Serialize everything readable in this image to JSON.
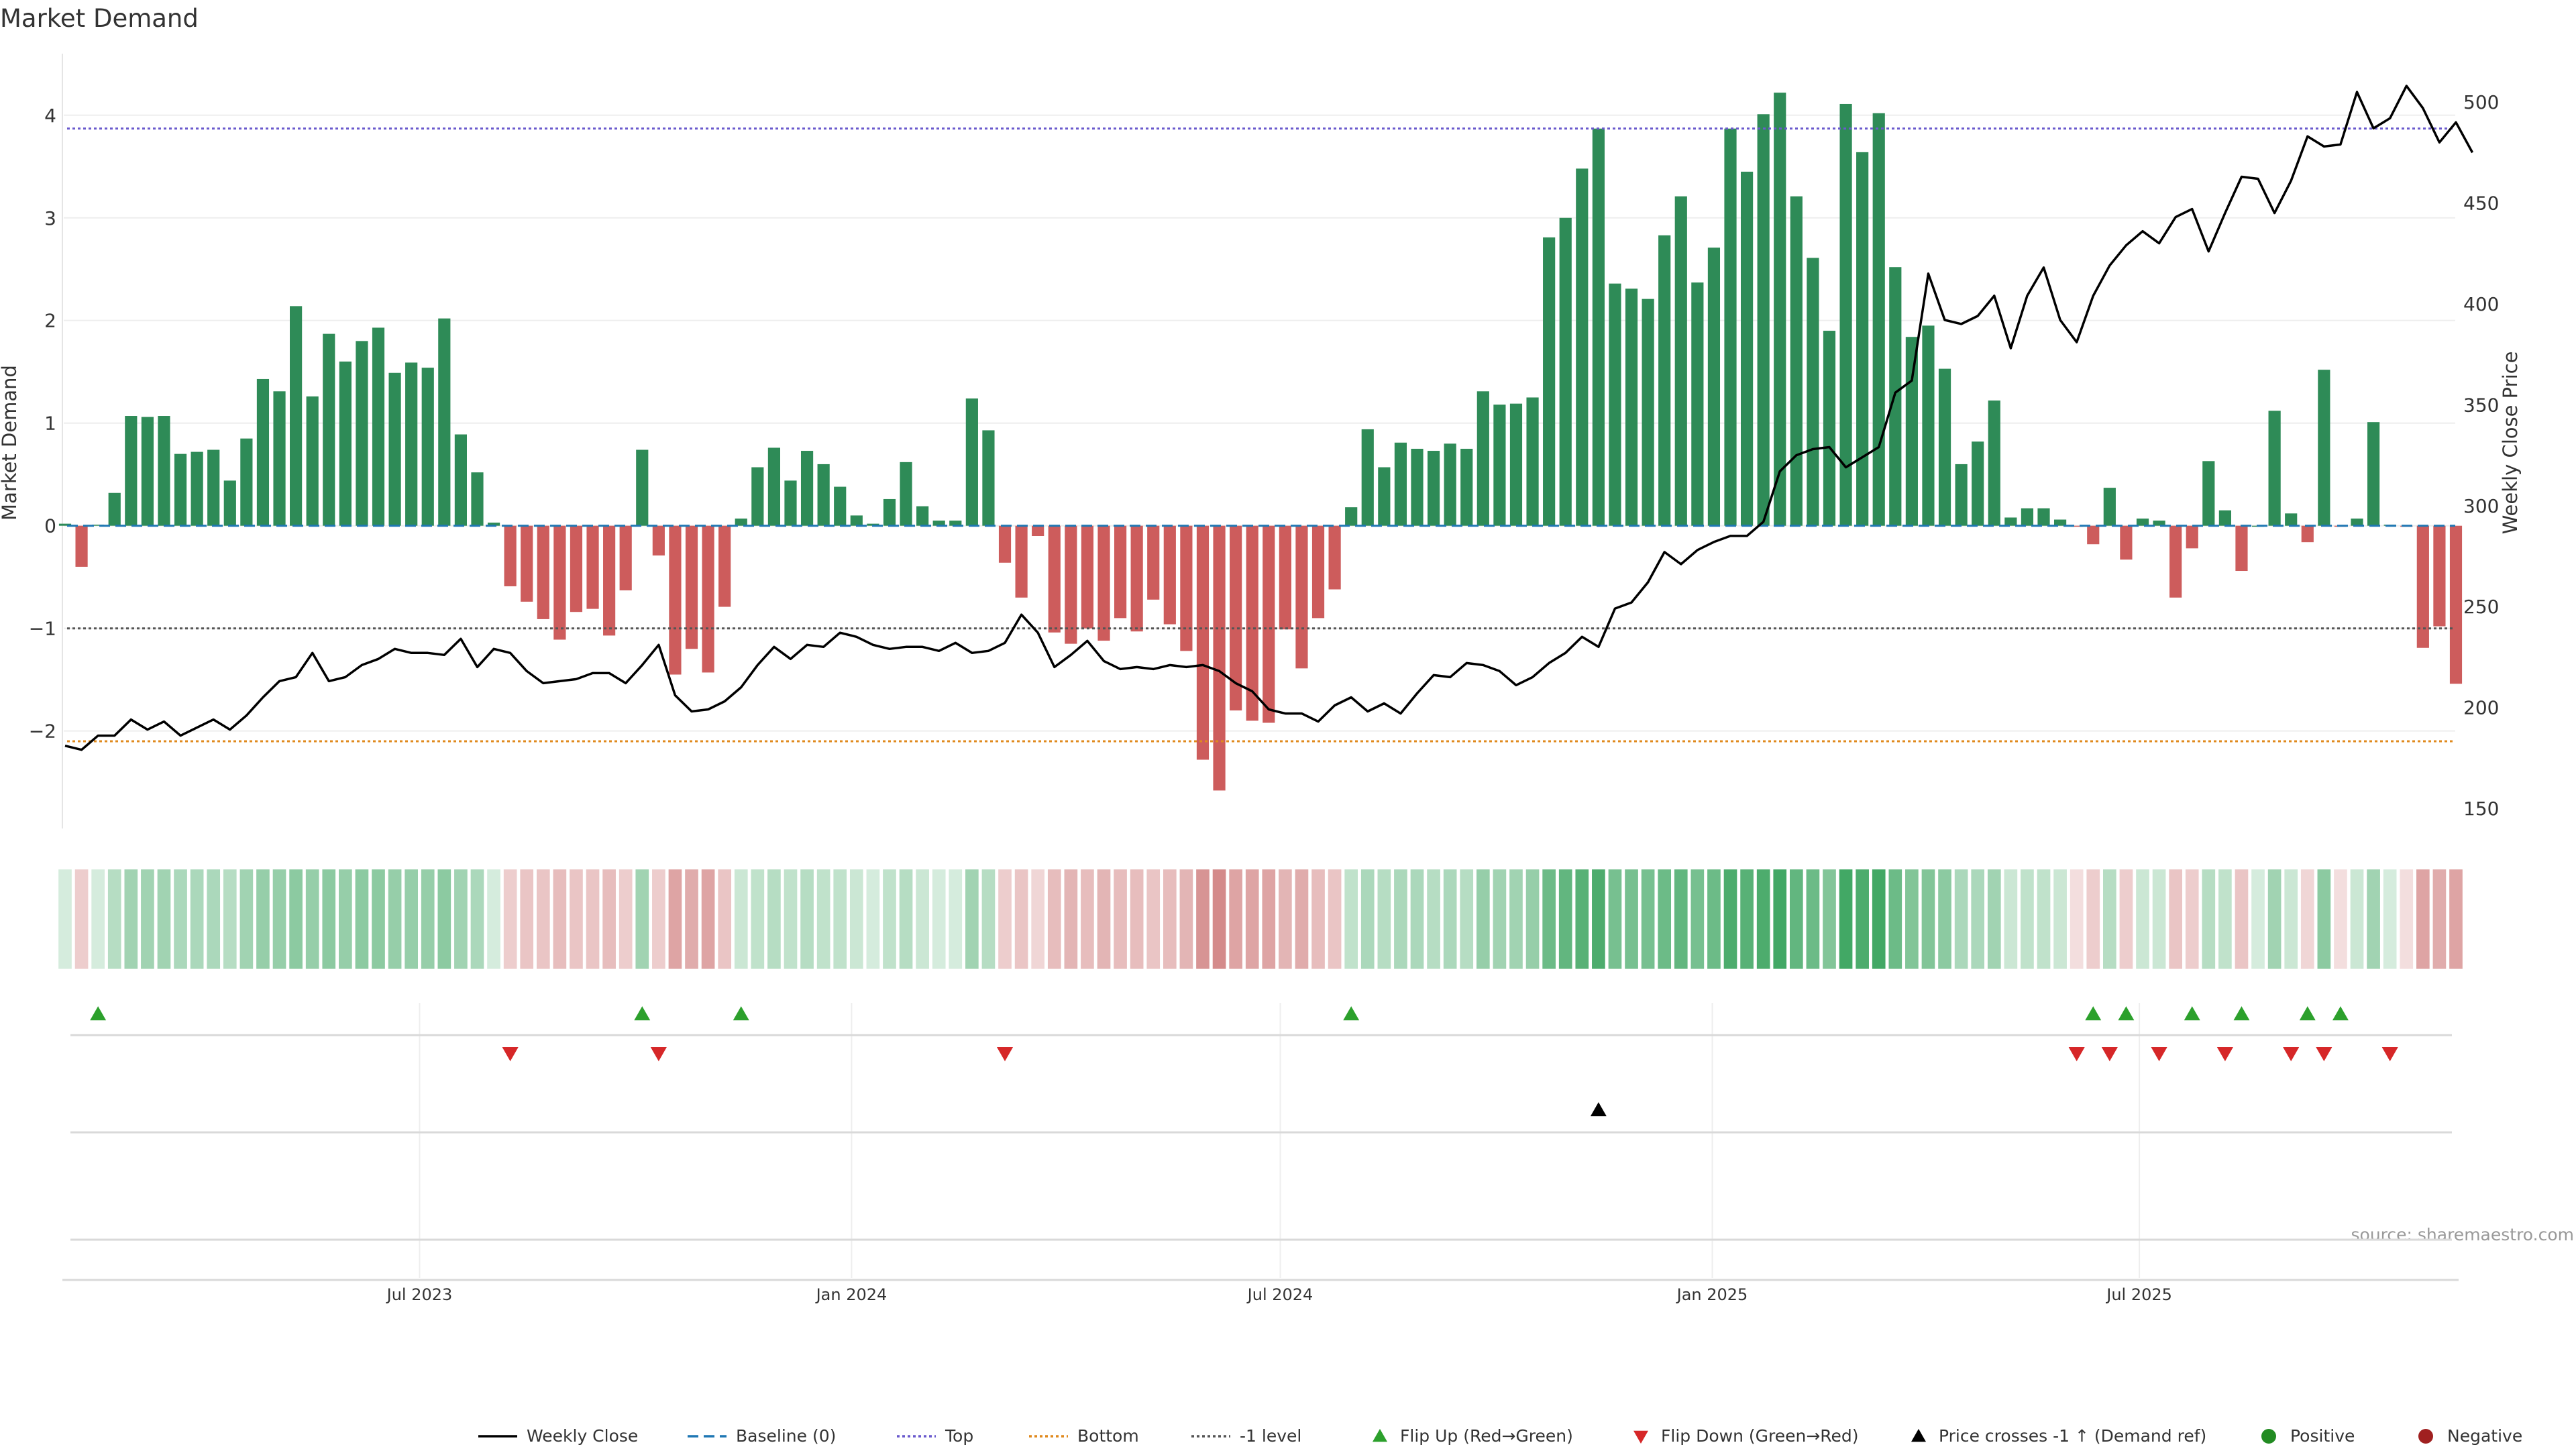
{
  "chart_data": {
    "type": "bar",
    "title": "Market Demand",
    "ylabel": "Market Demand",
    "y2label": "Weekly Close Price",
    "source": "source: sharemaestro.com",
    "ylim": [
      -2.95,
      4.6
    ],
    "y2lim": [
      140,
      524
    ],
    "yticks": [
      -2,
      -1,
      0,
      1,
      2,
      3,
      4
    ],
    "ytick_labels": [
      "−2",
      "−1",
      "0",
      "1",
      "2",
      "3",
      "4"
    ],
    "y2ticks": [
      150,
      200,
      250,
      300,
      350,
      400,
      450,
      500
    ],
    "ytick2_labels": [
      "150",
      "200",
      "250",
      "300",
      "350",
      "400",
      "450",
      "500"
    ],
    "xticks": [
      {
        "week": 21.5,
        "label": "Jul 2023"
      },
      {
        "week": 47.7,
        "label": "Jan 2024"
      },
      {
        "week": 73.7,
        "label": "Jul 2024"
      },
      {
        "week": 99.9,
        "label": "Jan 2025"
      },
      {
        "week": 125.8,
        "label": "Jul 2025"
      }
    ],
    "reference_lines": {
      "top": 3.87,
      "bottom": -2.1,
      "minus_one": -1.0,
      "baseline": 0
    },
    "colors": {
      "positive_bar": "#2e8b57",
      "negative_bar": "#cd5c5c",
      "price_line": "#000000",
      "top_line": "#6a5acd",
      "bottom_line": "#e08a1e",
      "minus_one_line": "#555555",
      "baseline": "#1f77b4",
      "flip_up": "#2ca02c",
      "flip_down": "#d62728",
      "price_cross": "#000000",
      "positive_dot": "#228b22",
      "negative_dot": "#a02020"
    },
    "demand": [
      0.02,
      -0.4,
      0.01,
      0.32,
      1.07,
      1.06,
      1.07,
      0.7,
      0.72,
      0.74,
      0.44,
      0.85,
      1.43,
      1.31,
      2.14,
      1.26,
      1.87,
      1.6,
      1.8,
      1.93,
      1.49,
      1.59,
      1.54,
      2.02,
      0.89,
      0.52,
      0.03,
      -0.59,
      -0.74,
      -0.91,
      -1.11,
      -0.84,
      -0.81,
      -1.07,
      -0.63,
      0.74,
      -0.29,
      -1.45,
      -1.2,
      -1.43,
      -0.79,
      0.07,
      0.57,
      0.76,
      0.44,
      0.73,
      0.6,
      0.38,
      0.1,
      0.02,
      0.26,
      0.62,
      0.19,
      0.05,
      0.05,
      1.24,
      0.93,
      -0.36,
      -0.7,
      -0.1,
      -1.04,
      -1.15,
      -1.0,
      -1.12,
      -0.9,
      -1.03,
      -0.72,
      -0.96,
      -1.22,
      -2.28,
      -2.58,
      -1.8,
      -1.9,
      -1.92,
      -1.01,
      -1.39,
      -0.9,
      -0.62,
      0.18,
      0.94,
      0.57,
      0.81,
      0.75,
      0.73,
      0.8,
      0.75,
      1.31,
      1.18,
      1.19,
      1.25,
      2.81,
      3.0,
      3.48,
      3.87,
      2.36,
      2.31,
      2.21,
      2.83,
      3.21,
      2.37,
      2.71,
      3.87,
      3.45,
      4.01,
      4.22,
      3.21,
      2.61,
      1.9,
      4.11,
      3.64,
      4.02,
      2.52,
      1.84,
      1.95,
      1.53,
      0.6,
      0.82,
      1.22,
      0.08,
      0.17,
      0.17,
      0.06,
      -0.01,
      -0.18,
      0.37,
      -0.33,
      0.07,
      0.05,
      -0.7,
      -0.22,
      0.63,
      0.15,
      -0.44,
      0.0,
      1.12,
      0.12,
      -0.16,
      1.52,
      -0.01,
      0.07,
      1.01,
      0.01,
      -0.01,
      -1.19,
      -0.98,
      -1.54
    ],
    "price": [
      181,
      179,
      186,
      186,
      194,
      189,
      193,
      186,
      190,
      194,
      189,
      196,
      205,
      213,
      215,
      227,
      213,
      215,
      221,
      224,
      229,
      227,
      227,
      226,
      234,
      220,
      229,
      227,
      218,
      212,
      213,
      214,
      217,
      217,
      212,
      221,
      231,
      206,
      198,
      199,
      203,
      210,
      221,
      230,
      224,
      231,
      230,
      237,
      235,
      231,
      229,
      230,
      230,
      228,
      232,
      227,
      228,
      232,
      246,
      237,
      220,
      226,
      233,
      223,
      219,
      220,
      219,
      221,
      220,
      221,
      218,
      212,
      208,
      199,
      197,
      197,
      193,
      201,
      205,
      198,
      202,
      197,
      207,
      216,
      215,
      222,
      221,
      218,
      211,
      215,
      222,
      227,
      235,
      230,
      249,
      252,
      262,
      277,
      271,
      278,
      282,
      285,
      285,
      292,
      317,
      325,
      328,
      329,
      319,
      324,
      329,
      356,
      362,
      415,
      392,
      390,
      394,
      404,
      378,
      404,
      418,
      392,
      381,
      404,
      419,
      429,
      436,
      430,
      443,
      447,
      426,
      445,
      463,
      462,
      445,
      461,
      483,
      478,
      479,
      505,
      487,
      492,
      508,
      497,
      480,
      490,
      475
    ],
    "shade_intensity": [
      0.2,
      0.3,
      0.2,
      0.35,
      0.45,
      0.45,
      0.45,
      0.4,
      0.4,
      0.4,
      0.35,
      0.45,
      0.5,
      0.5,
      0.55,
      0.5,
      0.55,
      0.5,
      0.55,
      0.55,
      0.5,
      0.5,
      0.5,
      0.55,
      0.45,
      0.4,
      0.2,
      0.3,
      0.35,
      0.35,
      0.4,
      0.35,
      0.35,
      0.4,
      0.3,
      0.45,
      0.3,
      0.55,
      0.5,
      0.55,
      0.35,
      0.25,
      0.3,
      0.35,
      0.3,
      0.35,
      0.3,
      0.3,
      0.25,
      0.2,
      0.3,
      0.35,
      0.25,
      0.2,
      0.2,
      0.45,
      0.35,
      0.3,
      0.35,
      0.25,
      0.4,
      0.45,
      0.4,
      0.45,
      0.4,
      0.4,
      0.35,
      0.4,
      0.45,
      0.65,
      0.7,
      0.55,
      0.55,
      0.55,
      0.45,
      0.5,
      0.4,
      0.35,
      0.3,
      0.4,
      0.35,
      0.4,
      0.4,
      0.35,
      0.4,
      0.35,
      0.5,
      0.45,
      0.45,
      0.5,
      0.7,
      0.75,
      0.8,
      0.85,
      0.65,
      0.65,
      0.65,
      0.7,
      0.75,
      0.65,
      0.7,
      0.85,
      0.8,
      0.85,
      0.9,
      0.75,
      0.7,
      0.6,
      0.9,
      0.85,
      0.9,
      0.7,
      0.6,
      0.6,
      0.55,
      0.4,
      0.4,
      0.45,
      0.25,
      0.3,
      0.3,
      0.25,
      0.2,
      0.3,
      0.35,
      0.3,
      0.25,
      0.25,
      0.35,
      0.3,
      0.35,
      0.3,
      0.35,
      0.2,
      0.45,
      0.25,
      0.25,
      0.55,
      0.2,
      0.25,
      0.45,
      0.2,
      0.2,
      0.55,
      0.5,
      0.55
    ],
    "flip_up_weeks": [
      2,
      35,
      41,
      78,
      123,
      125,
      129,
      132,
      136,
      138
    ],
    "flip_down_weeks": [
      27,
      36,
      57,
      122,
      124,
      127,
      131,
      135,
      137,
      141
    ],
    "price_cross_weeks": [
      93
    ],
    "legend": [
      {
        "label": "Weekly Close",
        "symbol": "line",
        "color": "#000000"
      },
      {
        "label": "Baseline (0)",
        "symbol": "dash",
        "color": "#1f77b4"
      },
      {
        "label": "Top",
        "symbol": "dot",
        "color": "#6a5acd"
      },
      {
        "label": "Bottom",
        "symbol": "dot",
        "color": "#e08a1e"
      },
      {
        "label": "-1 level",
        "symbol": "dot",
        "color": "#555555"
      },
      {
        "label": "Flip Up (Red→Green)",
        "symbol": "tri-up",
        "color": "#2ca02c"
      },
      {
        "label": "Flip Down (Green→Red)",
        "symbol": "tri-down",
        "color": "#d62728"
      },
      {
        "label": "Price crosses -1 ↑ (Demand ref)",
        "symbol": "tri-up",
        "color": "#000000"
      },
      {
        "label": "Positive",
        "symbol": "circle",
        "color": "#228b22"
      },
      {
        "label": "Negative",
        "symbol": "circle",
        "color": "#a02020"
      }
    ]
  }
}
